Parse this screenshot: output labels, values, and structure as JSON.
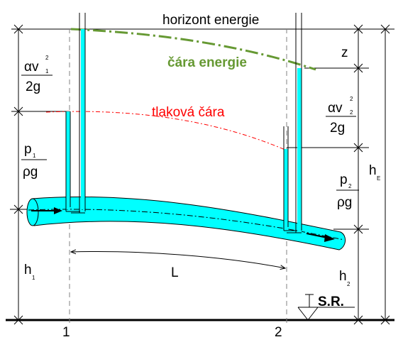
{
  "labels": {
    "energy_horizon": "horizont energie",
    "energy_line": "čára energie",
    "pressure_line": "tlaková čára",
    "z": "z",
    "L": "L",
    "hE": "h",
    "hE_sub": "E",
    "h1": "h",
    "h1_sub": "1",
    "h2": "h",
    "h2_sub": "2",
    "sr": "S.R.",
    "section1": "1",
    "section2": "2",
    "p1_top": "p",
    "p1_sub": "1",
    "rho_g": "ρg",
    "p2_top": "p",
    "p2_sub": "2",
    "alpha_v": "αv",
    "v1_sub": "1",
    "v2_sub": "2",
    "sq": "2",
    "two_g": "2g"
  },
  "colors": {
    "pipe_fill": "#00ffff",
    "energy_line": "#669933",
    "pressure_line": "#ff0000",
    "axis_black": "#000000",
    "dashed_grey": "#808080"
  }
}
